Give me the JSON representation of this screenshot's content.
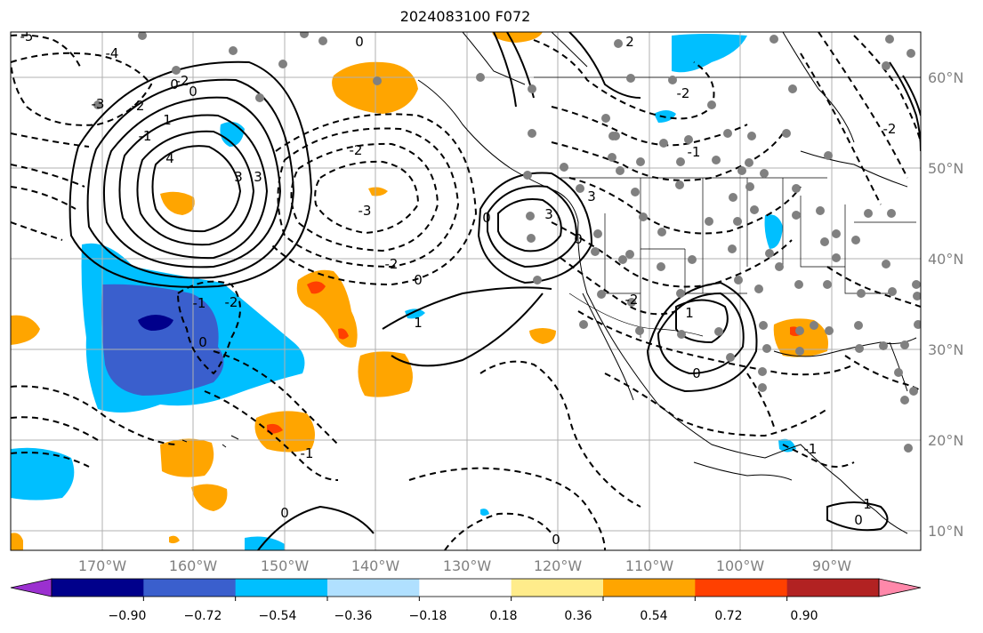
{
  "title": "2024083100 F072",
  "lat_labels": [
    "60°N",
    "50°N",
    "40°N",
    "30°N",
    "20°N",
    "10°N"
  ],
  "lon_labels": [
    "170°W",
    "160°W",
    "150°W",
    "140°W",
    "130°W",
    "120°W",
    "110°W",
    "100°W",
    "90°W"
  ],
  "colorbar": {
    "colors": [
      "#9b30d0",
      "#00008b",
      "#3a5fcd",
      "#00bfff",
      "#b0e0ff",
      "#ffffff",
      "#ffec8b",
      "#ffa500",
      "#ff4000",
      "#b22222",
      "#ff88aa"
    ],
    "tick_labels": [
      "−0.90",
      "−0.72",
      "−0.54",
      "−0.36",
      "−0.18",
      "0.18",
      "0.36",
      "0.54",
      "0.72",
      "0.90"
    ]
  },
  "contour_labels": [
    "0",
    "-5",
    "-4",
    "-3",
    "-2",
    "-2",
    "-1",
    "0",
    "0",
    "1",
    "3",
    "4",
    "3",
    "3",
    "-2",
    "-3",
    "-2",
    "0",
    "1",
    "0",
    "-1",
    "-2",
    "2",
    "-2",
    "3",
    "-1",
    "0",
    "1",
    "-2",
    "-1",
    "0",
    "0",
    "0",
    "0",
    "-1",
    "1",
    "0",
    "-2"
  ]
}
